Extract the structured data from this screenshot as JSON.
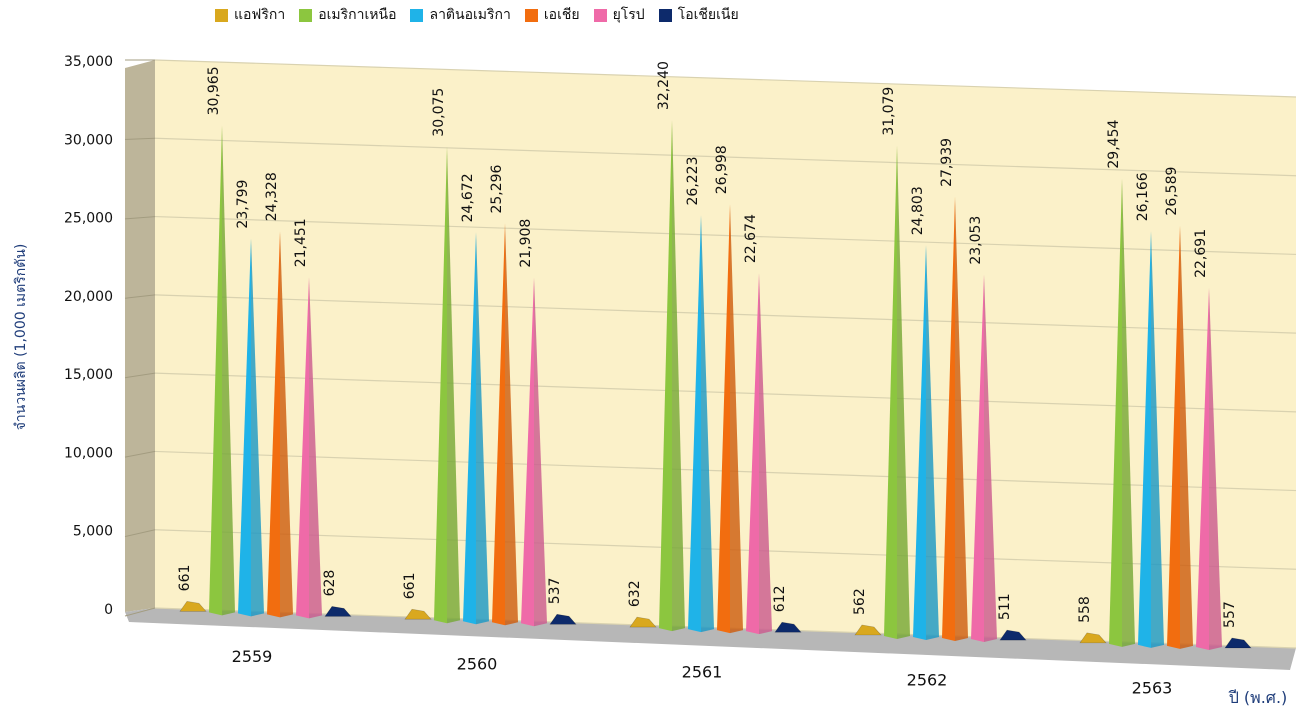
{
  "chart_data": {
    "type": "bar",
    "style": "3d-cone",
    "xlabel": "ปี (พ.ศ.)",
    "ylabel": "จำนวนผลิต (1,000  เมตริกตัน)",
    "ylim": [
      0,
      35000
    ],
    "yticks": [
      "0",
      "5,000",
      "10,000",
      "15,000",
      "20,000",
      "25,000",
      "30,000",
      "35,000"
    ],
    "grid": true,
    "legend_position": "top",
    "categories": [
      "2559",
      "2560",
      "2561",
      "2562",
      "2563"
    ],
    "series": [
      {
        "name": "แอฟริกา",
        "color": "#d9a81e",
        "values": [
          661,
          661,
          632,
          562,
          558
        ],
        "labels": [
          "661",
          "661",
          "632",
          "562",
          "558"
        ]
      },
      {
        "name": "อเมริกาเหนือ",
        "color": "#8cc63f",
        "values": [
          30965,
          30075,
          32240,
          31079,
          29454
        ],
        "labels": [
          "30,965",
          "30,075",
          "32,240",
          "31,079",
          "29,454"
        ]
      },
      {
        "name": "ลาตินอเมริกา",
        "color": "#1fb3e8",
        "values": [
          23799,
          24672,
          26223,
          24803,
          26166
        ],
        "labels": [
          "23,799",
          "24,672",
          "26,223",
          "24,803",
          "26,166"
        ]
      },
      {
        "name": "เอเชีย",
        "color": "#f26d0f",
        "values": [
          24328,
          25296,
          26998,
          27939,
          26589
        ],
        "labels": [
          "24,328",
          "25,296",
          "26,998",
          "27,939",
          "26,589"
        ]
      },
      {
        "name": "ยุโรป",
        "color": "#ef6aa8",
        "values": [
          21451,
          21908,
          22674,
          23053,
          22691
        ],
        "labels": [
          "21,451",
          "21,908",
          "22,674",
          "23,053",
          "22,691"
        ]
      },
      {
        "name": "โอเชียเนีย",
        "color": "#0d2a6b",
        "values": [
          628,
          537,
          612,
          511,
          557
        ],
        "labels": [
          "628",
          "537",
          "612",
          "511",
          "557"
        ]
      }
    ]
  }
}
